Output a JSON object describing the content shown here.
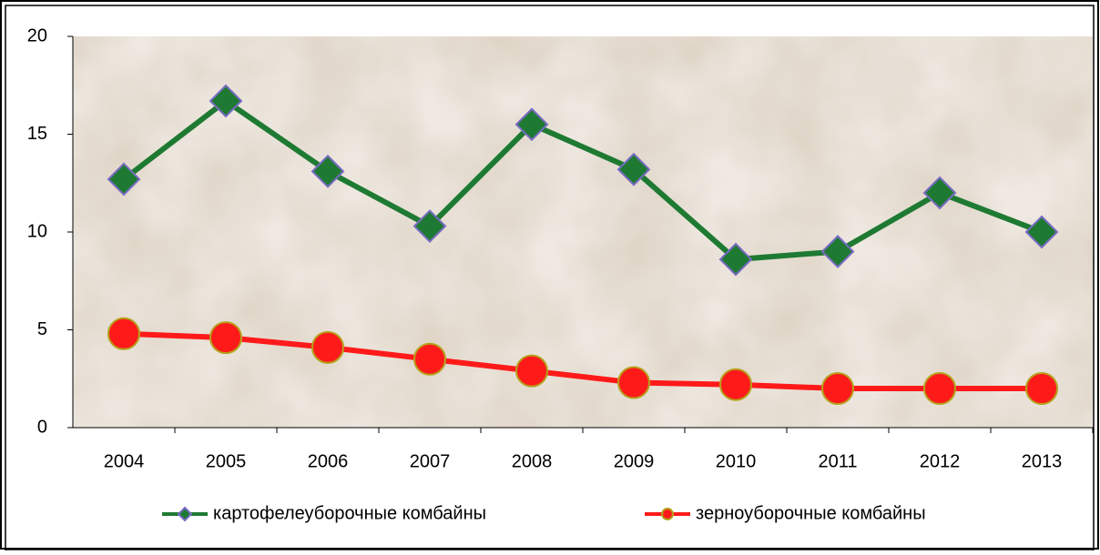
{
  "chart_data": {
    "type": "line",
    "categories": [
      "2004",
      "2005",
      "2006",
      "2007",
      "2008",
      "2009",
      "2010",
      "2011",
      "2012",
      "2013"
    ],
    "series": [
      {
        "name": "картофелеуборочные комбайны",
        "color": "#1e7a32",
        "marker": "diamond",
        "values": [
          12.7,
          16.7,
          13.1,
          10.3,
          15.5,
          13.2,
          8.6,
          9.0,
          12.0,
          10.0
        ]
      },
      {
        "name": "зерноуборочные комбайны",
        "color": "#ff1a1a",
        "marker": "circle",
        "values": [
          4.8,
          4.6,
          4.1,
          3.5,
          2.9,
          2.3,
          2.2,
          2.0,
          2.0,
          2.0
        ]
      }
    ],
    "ylim": [
      0,
      20
    ],
    "yticks": [
      0,
      5,
      10,
      15,
      20
    ],
    "grid": false,
    "legend": "bottom"
  }
}
